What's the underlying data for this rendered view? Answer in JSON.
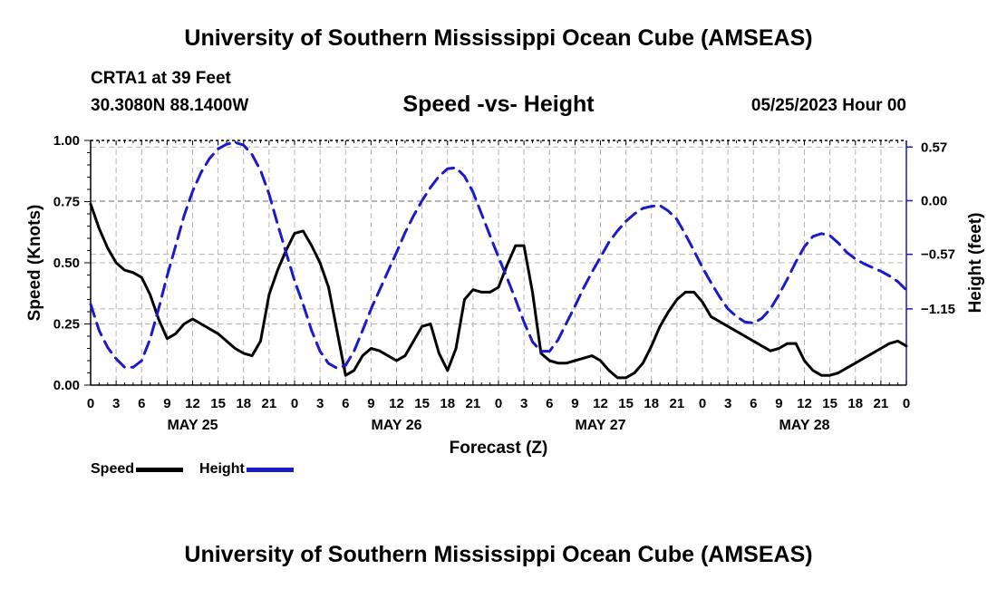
{
  "header": {
    "title": "University of Southern Mississippi Ocean Cube (AMSEAS)",
    "station": "CRTA1 at 39 Feet",
    "coords": "30.3080N  88.1400W",
    "subtitle": "Speed -vs- Height",
    "datetime": "05/25/2023 Hour 00"
  },
  "footer": {
    "title": "University of Southern Mississippi Ocean Cube (AMSEAS)"
  },
  "legend": {
    "speed_label": "Speed",
    "height_label": "Height"
  },
  "chart_data": {
    "type": "line",
    "title": "Speed -vs- Height",
    "xlabel": "Forecast (Z)",
    "ylabel": "Speed (Knots)",
    "y2label": "Height (feet)",
    "xlim": [
      0,
      96
    ],
    "ylim": [
      0,
      1.0
    ],
    "y2lim": [
      -1.96,
      0.64
    ],
    "y_ticks": [
      0.0,
      0.25,
      0.5,
      0.75,
      1.0
    ],
    "y_tick_labels": [
      "0.00",
      "0.25",
      "0.50",
      "0.75",
      "1.00"
    ],
    "y2_ticks": [
      0.57,
      0.0,
      -0.57,
      -1.15
    ],
    "y2_tick_labels": [
      "0.57",
      "0.00",
      "−0.57",
      "−1.15"
    ],
    "x_ticks": [
      0,
      3,
      6,
      9,
      12,
      15,
      18,
      21,
      24,
      27,
      30,
      33,
      36,
      39,
      42,
      45,
      48,
      51,
      54,
      57,
      60,
      63,
      66,
      69,
      72,
      75,
      78,
      81,
      84,
      87,
      90,
      93,
      96
    ],
    "x_tick_labels": [
      "0",
      "3",
      "6",
      "9",
      "12",
      "15",
      "18",
      "21",
      "0",
      "3",
      "6",
      "9",
      "12",
      "15",
      "18",
      "21",
      "0",
      "3",
      "6",
      "9",
      "12",
      "15",
      "18",
      "21",
      "0",
      "3",
      "6",
      "9",
      "12",
      "15",
      "18",
      "21",
      "0"
    ],
    "day_labels": [
      {
        "label": "MAY 25",
        "x": 12
      },
      {
        "label": "MAY 26",
        "x": 36
      },
      {
        "label": "MAY 27",
        "x": 60
      },
      {
        "label": "MAY 28",
        "x": 84
      }
    ],
    "grid": true,
    "legend_position": "bottom-left",
    "series": [
      {
        "name": "Speed",
        "axis": "left",
        "color": "#000000",
        "style": "solid",
        "x": [
          0,
          1,
          2,
          3,
          4,
          5,
          6,
          7,
          8,
          9,
          10,
          11,
          12,
          13,
          14,
          15,
          16,
          17,
          18,
          19,
          20,
          21,
          22,
          23,
          24,
          25,
          26,
          27,
          28,
          29,
          30,
          31,
          32,
          33,
          34,
          35,
          36,
          37,
          38,
          39,
          40,
          41,
          42,
          43,
          44,
          45,
          46,
          47,
          48,
          49,
          50,
          51,
          52,
          53,
          54,
          55,
          56,
          57,
          58,
          59,
          60,
          61,
          62,
          63,
          64,
          65,
          66,
          67,
          68,
          69,
          70,
          71,
          72,
          73,
          74,
          75,
          76,
          77,
          78,
          79,
          80,
          81,
          82,
          83,
          84,
          85,
          86,
          87,
          88,
          89,
          90,
          91,
          92,
          93,
          94,
          95,
          96
        ],
        "values": [
          0.74,
          0.64,
          0.56,
          0.5,
          0.47,
          0.46,
          0.44,
          0.37,
          0.27,
          0.19,
          0.21,
          0.25,
          0.27,
          0.25,
          0.23,
          0.21,
          0.18,
          0.15,
          0.13,
          0.12,
          0.18,
          0.37,
          0.47,
          0.55,
          0.62,
          0.63,
          0.57,
          0.5,
          0.4,
          0.22,
          0.04,
          0.06,
          0.12,
          0.15,
          0.14,
          0.12,
          0.1,
          0.12,
          0.18,
          0.24,
          0.25,
          0.13,
          0.06,
          0.15,
          0.35,
          0.39,
          0.38,
          0.38,
          0.4,
          0.49,
          0.57,
          0.57,
          0.38,
          0.13,
          0.1,
          0.09,
          0.09,
          0.1,
          0.11,
          0.12,
          0.1,
          0.06,
          0.03,
          0.03,
          0.05,
          0.09,
          0.16,
          0.24,
          0.3,
          0.35,
          0.38,
          0.38,
          0.34,
          0.28,
          0.26,
          0.24,
          0.22,
          0.2,
          0.18,
          0.16,
          0.14,
          0.15,
          0.17,
          0.17,
          0.1,
          0.06,
          0.04,
          0.04,
          0.05,
          0.07,
          0.09,
          0.11,
          0.13,
          0.15,
          0.17,
          0.18,
          0.16
        ]
      },
      {
        "name": "Height",
        "axis": "right",
        "color": "#1a1acc",
        "style": "dashed",
        "x": [
          0,
          1,
          2,
          3,
          4,
          5,
          6,
          7,
          8,
          9,
          10,
          11,
          12,
          13,
          14,
          15,
          16,
          17,
          18,
          19,
          20,
          21,
          22,
          23,
          24,
          25,
          26,
          27,
          28,
          29,
          30,
          31,
          32,
          33,
          34,
          35,
          36,
          37,
          38,
          39,
          40,
          41,
          42,
          43,
          44,
          45,
          46,
          47,
          48,
          49,
          50,
          51,
          52,
          53,
          54,
          55,
          56,
          57,
          58,
          59,
          60,
          61,
          62,
          63,
          64,
          65,
          66,
          67,
          68,
          69,
          70,
          71,
          72,
          73,
          74,
          75,
          76,
          77,
          78,
          79,
          80,
          81,
          82,
          83,
          84,
          85,
          86,
          87,
          88,
          89,
          90,
          91,
          92,
          93,
          94,
          95,
          96
        ],
        "values": [
          -1.1,
          -1.38,
          -1.56,
          -1.68,
          -1.77,
          -1.77,
          -1.7,
          -1.47,
          -1.15,
          -0.8,
          -0.48,
          -0.16,
          0.1,
          0.3,
          0.45,
          0.55,
          0.6,
          0.62,
          0.59,
          0.49,
          0.32,
          0.07,
          -0.25,
          -0.55,
          -0.85,
          -1.1,
          -1.38,
          -1.6,
          -1.73,
          -1.78,
          -1.75,
          -1.6,
          -1.38,
          -1.15,
          -0.95,
          -0.75,
          -0.55,
          -0.34,
          -0.16,
          0.0,
          0.14,
          0.26,
          0.34,
          0.35,
          0.26,
          0.09,
          -0.14,
          -0.37,
          -0.6,
          -0.82,
          -1.05,
          -1.29,
          -1.5,
          -1.6,
          -1.6,
          -1.48,
          -1.3,
          -1.12,
          -0.93,
          -0.76,
          -0.6,
          -0.44,
          -0.32,
          -0.22,
          -0.14,
          -0.08,
          -0.06,
          -0.05,
          -0.11,
          -0.2,
          -0.36,
          -0.53,
          -0.71,
          -0.87,
          -1.02,
          -1.15,
          -1.23,
          -1.29,
          -1.3,
          -1.25,
          -1.15,
          -1.0,
          -0.83,
          -0.65,
          -0.49,
          -0.38,
          -0.35,
          -0.37,
          -0.45,
          -0.55,
          -0.62,
          -0.67,
          -0.71,
          -0.75,
          -0.8,
          -0.86,
          -0.95
        ]
      }
    ]
  }
}
